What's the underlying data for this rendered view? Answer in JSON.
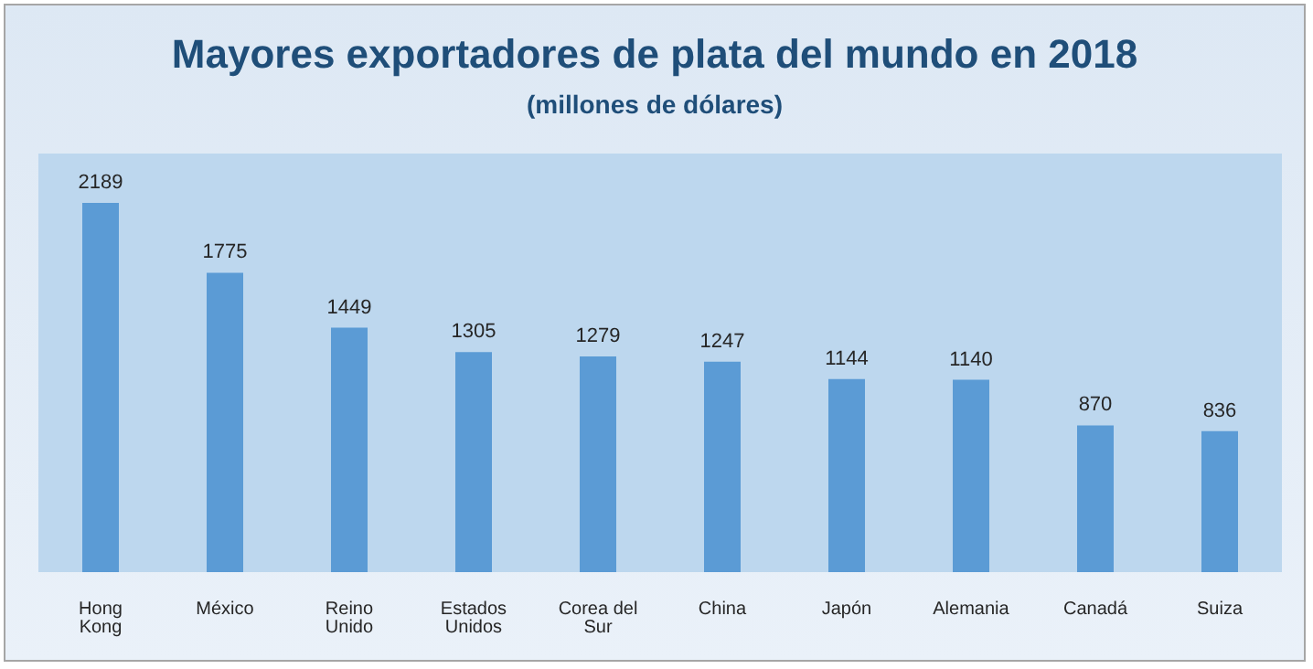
{
  "chart_data": {
    "type": "bar",
    "title": "Mayores exportadores de plata del mundo en 2018",
    "subtitle": "(millones de dólares)",
    "categories": [
      "Hong Kong",
      "México",
      "Reino Unido",
      "Estados Unidos",
      "Corea del Sur",
      "China",
      "Japón",
      "Alemania",
      "Canadá",
      "Suiza"
    ],
    "values": [
      2189,
      1775,
      1449,
      1305,
      1279,
      1247,
      1144,
      1140,
      870,
      836
    ],
    "color": "#5b9bd5",
    "data_labels": true
  }
}
